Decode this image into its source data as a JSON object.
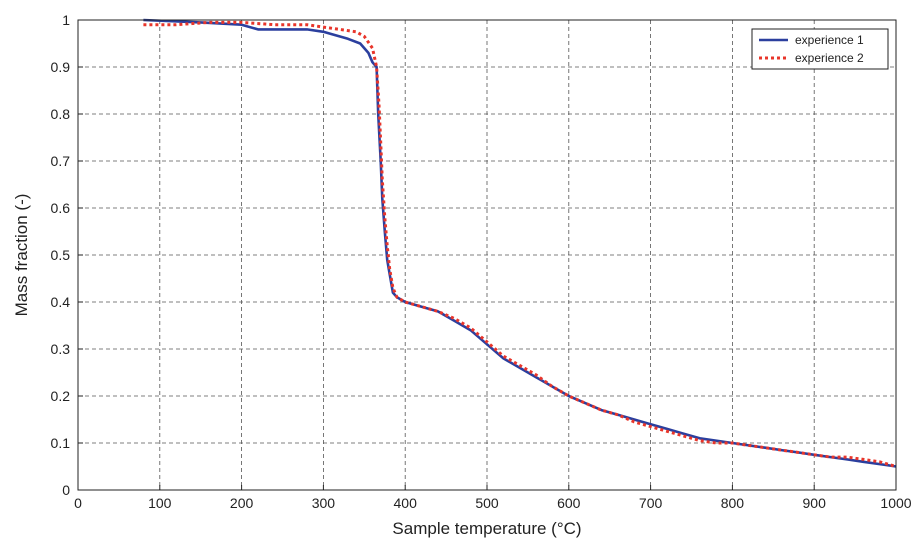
{
  "chart_data": {
    "type": "line",
    "xlabel": "Sample temperature (°C)",
    "ylabel": "Mass fraction (-)",
    "xlim": [
      0,
      1000
    ],
    "ylim": [
      0,
      1
    ],
    "xticks": [
      "0",
      "100",
      "200",
      "300",
      "400",
      "500",
      "600",
      "700",
      "800",
      "900",
      "1000"
    ],
    "yticks": [
      "0",
      "0.1",
      "0.2",
      "0.3",
      "0.4",
      "0.5",
      "0.6",
      "0.7",
      "0.8",
      "0.9",
      "1"
    ],
    "grid": true,
    "legend_position": "top-right",
    "series": [
      {
        "name": "experience 1",
        "color": "#2b3f9e",
        "style": "solid",
        "x": [
          80,
          150,
          200,
          220,
          240,
          280,
          300,
          310,
          330,
          345,
          355,
          360,
          365,
          367,
          370,
          372,
          375,
          378,
          380,
          385,
          390,
          400,
          420,
          440,
          460,
          480,
          500,
          520,
          540,
          560,
          580,
          600,
          620,
          640,
          660,
          680,
          700,
          720,
          740,
          760,
          780,
          800,
          820,
          840,
          860,
          880,
          900,
          920,
          940,
          960,
          980,
          1000
        ],
        "y": [
          1.0,
          0.995,
          0.99,
          0.98,
          0.98,
          0.98,
          0.975,
          0.97,
          0.96,
          0.95,
          0.93,
          0.91,
          0.9,
          0.8,
          0.7,
          0.62,
          0.55,
          0.49,
          0.47,
          0.42,
          0.41,
          0.4,
          0.39,
          0.38,
          0.36,
          0.34,
          0.31,
          0.28,
          0.26,
          0.24,
          0.22,
          0.2,
          0.185,
          0.17,
          0.16,
          0.15,
          0.14,
          0.13,
          0.12,
          0.11,
          0.105,
          0.1,
          0.095,
          0.09,
          0.085,
          0.08,
          0.075,
          0.07,
          0.065,
          0.06,
          0.055,
          0.05
        ]
      },
      {
        "name": "experience 2",
        "color": "#e8352a",
        "style": "dotted",
        "x": [
          80,
          120,
          160,
          200,
          240,
          280,
          300,
          320,
          340,
          350,
          360,
          365,
          368,
          370,
          372,
          375,
          378,
          381,
          385,
          390,
          400,
          420,
          440,
          460,
          480,
          500,
          520,
          540,
          560,
          580,
          600,
          620,
          640,
          660,
          680,
          700,
          720,
          740,
          760,
          780,
          800,
          820,
          840,
          860,
          880,
          900,
          920,
          940,
          960,
          980,
          1000
        ],
        "y": [
          0.99,
          0.99,
          0.995,
          0.995,
          0.99,
          0.99,
          0.985,
          0.98,
          0.975,
          0.965,
          0.94,
          0.9,
          0.82,
          0.74,
          0.66,
          0.58,
          0.52,
          0.47,
          0.43,
          0.41,
          0.4,
          0.39,
          0.38,
          0.365,
          0.345,
          0.315,
          0.285,
          0.265,
          0.245,
          0.22,
          0.2,
          0.185,
          0.17,
          0.16,
          0.145,
          0.135,
          0.125,
          0.115,
          0.105,
          0.1,
          0.1,
          0.095,
          0.09,
          0.085,
          0.08,
          0.075,
          0.07,
          0.07,
          0.065,
          0.06,
          0.05
        ]
      }
    ]
  }
}
